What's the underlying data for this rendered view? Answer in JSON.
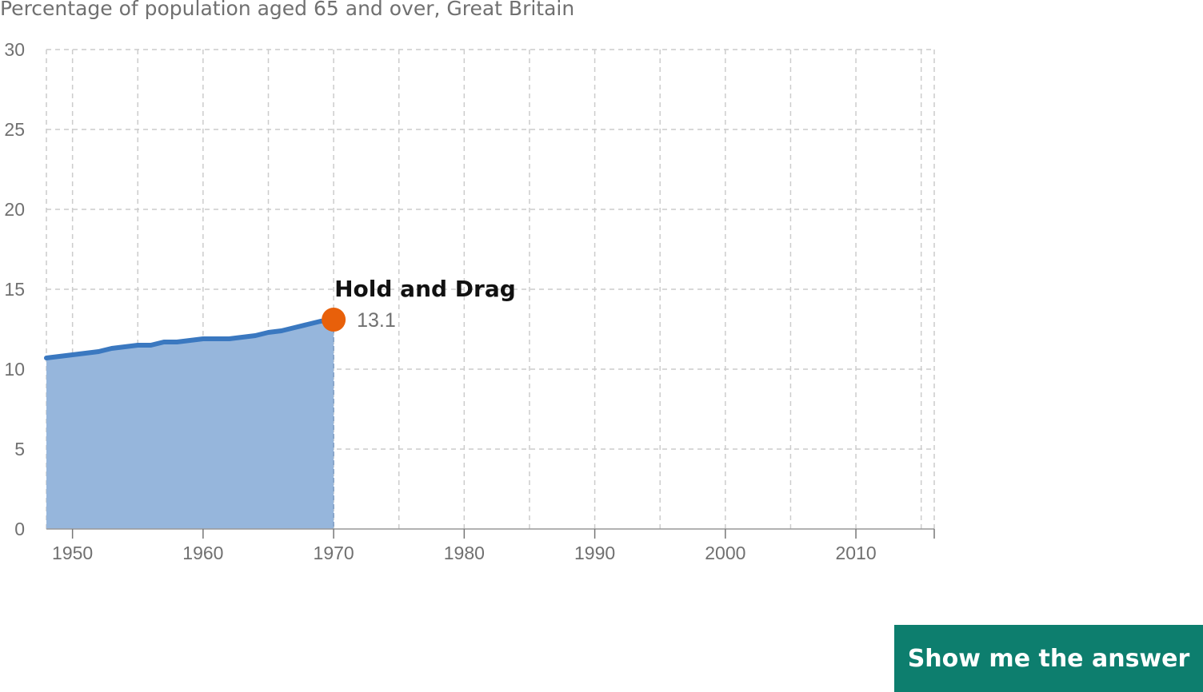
{
  "chart_title": "Percentage of population aged 65 and over, Great Britain",
  "chart_data": {
    "type": "area",
    "title": "Percentage of population aged 65 and over, Great Britain",
    "xlim": [
      1948,
      2016
    ],
    "ylim": [
      0,
      30
    ],
    "x_ticks": [
      1950,
      1960,
      1970,
      1980,
      1990,
      2000,
      2010
    ],
    "y_ticks": [
      0,
      5,
      10,
      15,
      20,
      25,
      30
    ],
    "grid": true,
    "series": [
      {
        "x": [
          1948,
          1949,
          1950,
          1951,
          1952,
          1953,
          1954,
          1955,
          1956,
          1957,
          1958,
          1959,
          1960,
          1961,
          1962,
          1963,
          1964,
          1965,
          1966,
          1967,
          1968,
          1969,
          1970
        ],
        "y": [
          10.7,
          10.8,
          10.9,
          11.0,
          11.1,
          11.3,
          11.4,
          11.5,
          11.5,
          11.7,
          11.7,
          11.8,
          11.9,
          11.9,
          11.9,
          12.0,
          12.1,
          12.3,
          12.4,
          12.6,
          12.8,
          13.0,
          13.1
        ]
      }
    ],
    "handle": {
      "x": 1970,
      "y": 13.1,
      "label": "Hold and Drag",
      "value_label": "13.1"
    }
  },
  "colors": {
    "line": "#3a78c0",
    "area": "#96b6dc",
    "handle": "#e8600a",
    "button": "#0d7e6e"
  },
  "button": {
    "label": "Show me the answer"
  }
}
